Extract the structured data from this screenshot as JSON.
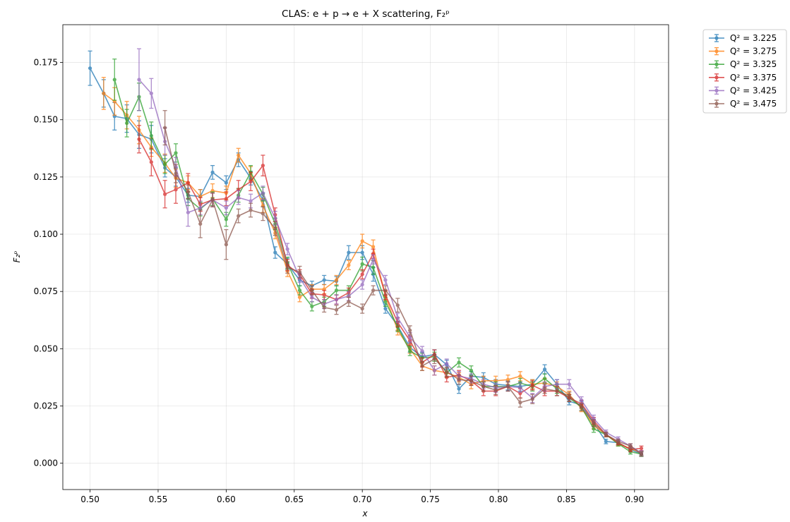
{
  "chart_data": {
    "type": "line",
    "title": "CLAS: e + p → e + X scattering, F₂ᵖ",
    "xlabel": "x",
    "ylabel": "F₂ᵖ",
    "xlim": [
      0.48,
      0.925
    ],
    "ylim": [
      -0.0115,
      0.1915
    ],
    "xticks": [
      "0.50",
      "0.55",
      "0.60",
      "0.65",
      "0.70",
      "0.75",
      "0.80",
      "0.85",
      "0.90"
    ],
    "yticks": [
      "0.000",
      "0.025",
      "0.050",
      "0.075",
      "0.100",
      "0.125",
      "0.150",
      "0.175"
    ],
    "grid": true,
    "legend_position": "outside-top-right",
    "series": [
      {
        "name": "Q² = 3.225",
        "color": "#1f77b4",
        "x": [
          0.5,
          0.51,
          0.518,
          0.527,
          0.536,
          0.545,
          0.555,
          0.563,
          0.572,
          0.581,
          0.59,
          0.6,
          0.609,
          0.618,
          0.627,
          0.636,
          0.645,
          0.654,
          0.663,
          0.672,
          0.681,
          0.69,
          0.7,
          0.708,
          0.717,
          0.726,
          0.735,
          0.744,
          0.753,
          0.762,
          0.771,
          0.78,
          0.789,
          0.798,
          0.807,
          0.816,
          0.825,
          0.834,
          0.843,
          0.852,
          0.861,
          0.87,
          0.879,
          0.888,
          0.897,
          0.905
        ],
        "y": [
          0.1725,
          0.1615,
          0.1515,
          0.1505,
          0.1435,
          0.1415,
          0.129,
          0.125,
          0.117,
          0.1165,
          0.127,
          0.1225,
          0.1325,
          0.1245,
          0.115,
          0.092,
          0.087,
          0.08,
          0.0775,
          0.08,
          0.0795,
          0.092,
          0.092,
          0.0825,
          0.0675,
          0.06,
          0.0505,
          0.0465,
          0.0475,
          0.043,
          0.0325,
          0.038,
          0.0375,
          0.0345,
          0.034,
          0.0335,
          0.0345,
          0.041,
          0.0345,
          0.027,
          0.0255,
          0.0175,
          0.0095,
          0.009,
          0.006,
          0.004
        ],
        "err": [
          0.0075,
          0.006,
          0.006,
          0.006,
          0.006,
          0.006,
          0.004,
          0.004,
          0.003,
          0.003,
          0.003,
          0.003,
          0.003,
          0.003,
          0.003,
          0.0025,
          0.0025,
          0.0025,
          0.002,
          0.002,
          0.002,
          0.003,
          0.003,
          0.003,
          0.002,
          0.002,
          0.002,
          0.002,
          0.002,
          0.002,
          0.002,
          0.002,
          0.002,
          0.002,
          0.002,
          0.002,
          0.002,
          0.002,
          0.002,
          0.0015,
          0.0015,
          0.0015,
          0.001,
          0.001,
          0.001,
          0.001
        ]
      },
      {
        "name": "Q² = 3.275",
        "color": "#ff7f0e",
        "x": [
          0.51,
          0.518,
          0.527,
          0.536,
          0.545,
          0.555,
          0.563,
          0.572,
          0.581,
          0.59,
          0.6,
          0.609,
          0.618,
          0.627,
          0.636,
          0.645,
          0.654,
          0.663,
          0.672,
          0.681,
          0.69,
          0.7,
          0.708,
          0.717,
          0.726,
          0.735,
          0.744,
          0.753,
          0.762,
          0.771,
          0.78,
          0.789,
          0.798,
          0.807,
          0.816,
          0.825,
          0.834,
          0.843,
          0.852,
          0.861,
          0.87,
          0.879,
          0.888,
          0.897,
          0.905
        ],
        "y": [
          0.1615,
          0.158,
          0.152,
          0.1455,
          0.138,
          0.131,
          0.1245,
          0.1225,
          0.1165,
          0.119,
          0.118,
          0.1345,
          0.1265,
          0.1125,
          0.1005,
          0.084,
          0.0725,
          0.076,
          0.076,
          0.08,
          0.0865,
          0.097,
          0.0945,
          0.073,
          0.058,
          0.05,
          0.0425,
          0.0405,
          0.0395,
          0.0375,
          0.0345,
          0.036,
          0.036,
          0.0365,
          0.038,
          0.0345,
          0.035,
          0.0335,
          0.03,
          0.024,
          0.0165,
          0.0125,
          0.0085,
          0.0065,
          0.0045
        ],
        "err": [
          0.007,
          0.006,
          0.006,
          0.006,
          0.004,
          0.004,
          0.004,
          0.003,
          0.003,
          0.003,
          0.003,
          0.003,
          0.003,
          0.003,
          0.0025,
          0.0025,
          0.002,
          0.002,
          0.002,
          0.002,
          0.002,
          0.003,
          0.003,
          0.002,
          0.002,
          0.002,
          0.002,
          0.002,
          0.002,
          0.002,
          0.002,
          0.002,
          0.002,
          0.002,
          0.002,
          0.002,
          0.002,
          0.002,
          0.0015,
          0.0015,
          0.0015,
          0.001,
          0.001,
          0.001,
          0.001
        ]
      },
      {
        "name": "Q² = 3.325",
        "color": "#2ca02c",
        "x": [
          0.518,
          0.527,
          0.536,
          0.545,
          0.555,
          0.563,
          0.572,
          0.581,
          0.59,
          0.6,
          0.609,
          0.618,
          0.627,
          0.636,
          0.645,
          0.654,
          0.663,
          0.672,
          0.681,
          0.69,
          0.7,
          0.708,
          0.717,
          0.726,
          0.735,
          0.744,
          0.753,
          0.762,
          0.771,
          0.78,
          0.789,
          0.798,
          0.807,
          0.816,
          0.825,
          0.834,
          0.843,
          0.852,
          0.861,
          0.87,
          0.879,
          0.888,
          0.897,
          0.905
        ],
        "y": [
          0.1675,
          0.1485,
          0.16,
          0.143,
          0.1305,
          0.1355,
          0.1155,
          0.111,
          0.1155,
          0.1065,
          0.117,
          0.127,
          0.1175,
          0.1045,
          0.0875,
          0.0755,
          0.0685,
          0.0705,
          0.0755,
          0.0755,
          0.087,
          0.0855,
          0.0705,
          0.0595,
          0.049,
          0.046,
          0.0465,
          0.0395,
          0.044,
          0.0405,
          0.0335,
          0.0335,
          0.0335,
          0.035,
          0.0335,
          0.037,
          0.0325,
          0.0285,
          0.0245,
          0.015,
          0.0125,
          0.0085,
          0.005,
          0.004
        ],
        "err": [
          0.009,
          0.006,
          0.006,
          0.006,
          0.004,
          0.004,
          0.003,
          0.003,
          0.003,
          0.003,
          0.003,
          0.003,
          0.003,
          0.0025,
          0.0025,
          0.002,
          0.002,
          0.002,
          0.002,
          0.002,
          0.003,
          0.003,
          0.002,
          0.002,
          0.002,
          0.002,
          0.002,
          0.002,
          0.002,
          0.002,
          0.002,
          0.002,
          0.002,
          0.002,
          0.002,
          0.002,
          0.002,
          0.0015,
          0.0015,
          0.0015,
          0.001,
          0.001,
          0.001,
          0.001
        ]
      },
      {
        "name": "Q² = 3.375",
        "color": "#d62728",
        "x": [
          0.536,
          0.545,
          0.555,
          0.563,
          0.572,
          0.581,
          0.59,
          0.6,
          0.609,
          0.618,
          0.627,
          0.636,
          0.645,
          0.654,
          0.663,
          0.672,
          0.681,
          0.69,
          0.7,
          0.708,
          0.717,
          0.726,
          0.735,
          0.744,
          0.753,
          0.762,
          0.771,
          0.78,
          0.789,
          0.798,
          0.807,
          0.816,
          0.825,
          0.834,
          0.843,
          0.852,
          0.861,
          0.87,
          0.879,
          0.888,
          0.897,
          0.905
        ],
        "y": [
          0.1415,
          0.1315,
          0.1175,
          0.1195,
          0.1225,
          0.113,
          0.115,
          0.1155,
          0.1195,
          0.123,
          0.13,
          0.1085,
          0.0865,
          0.0825,
          0.074,
          0.0735,
          0.0715,
          0.0745,
          0.0825,
          0.0915,
          0.0735,
          0.0615,
          0.0535,
          0.044,
          0.0475,
          0.0375,
          0.0385,
          0.036,
          0.0315,
          0.0315,
          0.0335,
          0.0305,
          0.034,
          0.0315,
          0.0315,
          0.0285,
          0.026,
          0.0185,
          0.0125,
          0.009,
          0.006,
          0.0065
        ],
        "err": [
          0.006,
          0.006,
          0.006,
          0.006,
          0.004,
          0.003,
          0.003,
          0.003,
          0.004,
          0.004,
          0.0045,
          0.003,
          0.0025,
          0.002,
          0.002,
          0.002,
          0.002,
          0.002,
          0.002,
          0.002,
          0.002,
          0.002,
          0.002,
          0.002,
          0.002,
          0.002,
          0.002,
          0.002,
          0.002,
          0.002,
          0.002,
          0.002,
          0.002,
          0.002,
          0.002,
          0.0015,
          0.0015,
          0.0015,
          0.001,
          0.001,
          0.001,
          0.001
        ]
      },
      {
        "name": "Q² = 3.425",
        "color": "#9467bd",
        "x": [
          0.536,
          0.545,
          0.555,
          0.563,
          0.572,
          0.581,
          0.59,
          0.6,
          0.609,
          0.618,
          0.627,
          0.636,
          0.645,
          0.654,
          0.663,
          0.672,
          0.681,
          0.69,
          0.7,
          0.708,
          0.717,
          0.726,
          0.735,
          0.744,
          0.753,
          0.762,
          0.771,
          0.78,
          0.789,
          0.798,
          0.807,
          0.816,
          0.825,
          0.834,
          0.843,
          0.852,
          0.861,
          0.87,
          0.879,
          0.888,
          0.897,
          0.905
        ],
        "y": [
          0.1675,
          0.1615,
          0.1405,
          0.1295,
          0.1095,
          0.1115,
          0.115,
          0.1115,
          0.116,
          0.1145,
          0.118,
          0.107,
          0.0935,
          0.081,
          0.0725,
          0.0695,
          0.0715,
          0.073,
          0.078,
          0.089,
          0.08,
          0.0635,
          0.055,
          0.049,
          0.0405,
          0.0435,
          0.038,
          0.037,
          0.0345,
          0.033,
          0.0335,
          0.033,
          0.0285,
          0.0335,
          0.0345,
          0.0345,
          0.0275,
          0.0195,
          0.0135,
          0.0105,
          0.0075,
          0.0045
        ],
        "err": [
          0.0135,
          0.0065,
          0.006,
          0.004,
          0.006,
          0.003,
          0.003,
          0.003,
          0.003,
          0.003,
          0.003,
          0.003,
          0.0025,
          0.002,
          0.002,
          0.002,
          0.002,
          0.002,
          0.002,
          0.002,
          0.002,
          0.002,
          0.002,
          0.002,
          0.002,
          0.002,
          0.002,
          0.002,
          0.002,
          0.002,
          0.002,
          0.002,
          0.002,
          0.002,
          0.002,
          0.002,
          0.0015,
          0.0015,
          0.001,
          0.001,
          0.001,
          0.001
        ]
      },
      {
        "name": "Q² = 3.475",
        "color": "#8c564b",
        "x": [
          0.555,
          0.563,
          0.572,
          0.581,
          0.59,
          0.6,
          0.609,
          0.618,
          0.627,
          0.636,
          0.645,
          0.654,
          0.663,
          0.672,
          0.681,
          0.69,
          0.7,
          0.708,
          0.717,
          0.726,
          0.735,
          0.744,
          0.753,
          0.762,
          0.771,
          0.78,
          0.789,
          0.798,
          0.807,
          0.816,
          0.825,
          0.834,
          0.843,
          0.852,
          0.861,
          0.87,
          0.879,
          0.888,
          0.897,
          0.905
        ],
        "y": [
          0.1465,
          0.1265,
          0.1185,
          0.1045,
          0.115,
          0.0955,
          0.108,
          0.1105,
          0.109,
          0.1025,
          0.0855,
          0.0835,
          0.0755,
          0.068,
          0.067,
          0.0705,
          0.0675,
          0.0755,
          0.0755,
          0.069,
          0.058,
          0.0425,
          0.0455,
          0.04,
          0.0365,
          0.036,
          0.0335,
          0.032,
          0.0335,
          0.0265,
          0.028,
          0.0325,
          0.0315,
          0.0295,
          0.0245,
          0.0175,
          0.0125,
          0.0095,
          0.0075,
          0.004
        ],
        "err": [
          0.0075,
          0.004,
          0.003,
          0.006,
          0.003,
          0.0065,
          0.003,
          0.003,
          0.003,
          0.003,
          0.0025,
          0.0025,
          0.002,
          0.002,
          0.002,
          0.002,
          0.002,
          0.002,
          0.002,
          0.003,
          0.002,
          0.002,
          0.002,
          0.002,
          0.002,
          0.002,
          0.002,
          0.002,
          0.002,
          0.002,
          0.002,
          0.002,
          0.002,
          0.0015,
          0.0015,
          0.0015,
          0.001,
          0.001,
          0.001,
          0.001
        ]
      }
    ]
  }
}
